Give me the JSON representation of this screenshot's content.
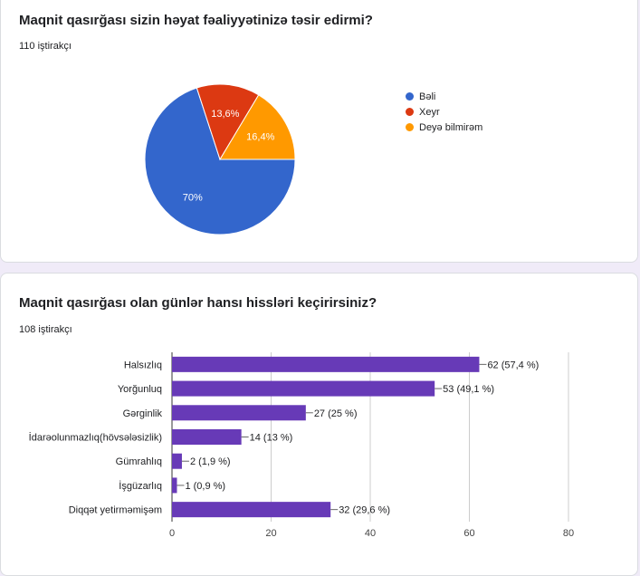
{
  "questions": [
    {
      "title": "Maqnit qasırğası sizin həyat fəaliyyətinizə təsir edirmi?",
      "participants": "110 iştirakçı"
    },
    {
      "title": "Maqnit qasırğası olan günlər hansı hissləri keçirirsiniz?",
      "participants": "108 iştirakçı"
    }
  ],
  "chart_data": [
    {
      "type": "pie",
      "categories": [
        "Bəli",
        "Xeyr",
        "Deyə bilmirəm"
      ],
      "values": [
        70,
        13.6,
        16.4
      ],
      "labels": [
        "70%",
        "13,6%",
        "16,4%"
      ],
      "colors": [
        "#3366cc",
        "#dc3912",
        "#ff9900"
      ],
      "legend_position": "right"
    },
    {
      "type": "bar",
      "orientation": "horizontal",
      "categories": [
        "Halsızlıq",
        "Yorğunluq",
        "Gərginlik",
        "İdarəolunmazlıq(hövsələsizlik)",
        "Gümrahlıq",
        "İşgüzarlıq",
        "Diqqət yetirməmişəm"
      ],
      "values": [
        62,
        53,
        27,
        14,
        2,
        1,
        32
      ],
      "data_labels": [
        "62 (57,4 %)",
        "53 (49,1 %)",
        "27 (25 %)",
        "14 (13 %)",
        "2 (1,9 %)",
        "1 (0,9 %)",
        "32 (29,6 %)"
      ],
      "xlim": [
        0,
        80
      ],
      "xticks": [
        "0",
        "20",
        "40",
        "60",
        "80"
      ],
      "bar_color": "#673ab7",
      "grid": true
    }
  ]
}
